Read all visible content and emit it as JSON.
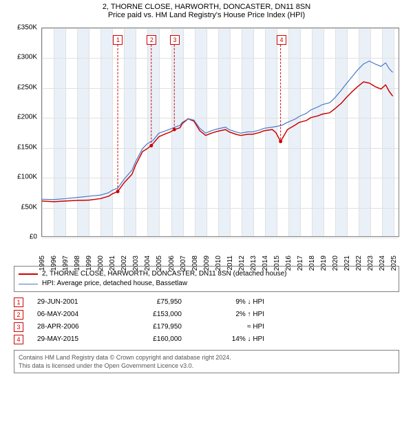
{
  "title": {
    "line1": "2, THORNE CLOSE, HARWORTH, DONCASTER, DN11 8SN",
    "line2": "Price paid vs. HM Land Registry's House Price Index (HPI)"
  },
  "chart": {
    "type": "line",
    "x_start_year": 1995,
    "x_end_year": 2025,
    "xlim": [
      1995,
      2025.5
    ],
    "ylim": [
      0,
      350000
    ],
    "ytick_step": 50000,
    "ytick_labels": [
      "£0",
      "£50K",
      "£100K",
      "£150K",
      "£200K",
      "£250K",
      "£300K",
      "£350K"
    ],
    "xtick_years": [
      1995,
      1996,
      1997,
      1998,
      1999,
      2000,
      2001,
      2002,
      2003,
      2004,
      2005,
      2006,
      2007,
      2008,
      2009,
      2010,
      2011,
      2012,
      2013,
      2014,
      2015,
      2016,
      2017,
      2018,
      2019,
      2020,
      2021,
      2022,
      2023,
      2024,
      2025
    ],
    "band_color": "#eaf0f8",
    "grid_color": "#e0e0e0",
    "border_color": "#808080",
    "background_color": "#ffffff",
    "series": [
      {
        "name": "2, THORNE CLOSE, HARWORTH, DONCASTER, DN11 8SN (detached house)",
        "color": "#cc0000",
        "line_width": 1.5,
        "points": [
          [
            1995,
            60000
          ],
          [
            1996,
            59000
          ],
          [
            1997,
            60000
          ],
          [
            1998,
            61000
          ],
          [
            1999,
            61500
          ],
          [
            2000,
            64000
          ],
          [
            2000.7,
            68000
          ],
          [
            2001.0,
            72000
          ],
          [
            2001.48,
            75950
          ],
          [
            2002,
            90000
          ],
          [
            2002.7,
            105000
          ],
          [
            2003,
            120000
          ],
          [
            2003.6,
            143000
          ],
          [
            2004.0,
            148000
          ],
          [
            2004.35,
            153000
          ],
          [
            2005,
            168000
          ],
          [
            2005.6,
            173000
          ],
          [
            2006,
            176000
          ],
          [
            2006.32,
            179950
          ],
          [
            2006.8,
            183000
          ],
          [
            2007,
            190000
          ],
          [
            2007.5,
            198000
          ],
          [
            2008,
            194000
          ],
          [
            2008.5,
            178000
          ],
          [
            2009,
            170000
          ],
          [
            2009.5,
            174000
          ],
          [
            2010,
            177000
          ],
          [
            2010.7,
            180000
          ],
          [
            2011,
            176000
          ],
          [
            2011.6,
            172000
          ],
          [
            2012,
            170000
          ],
          [
            2012.6,
            172000
          ],
          [
            2013,
            172000
          ],
          [
            2013.6,
            175000
          ],
          [
            2014,
            178000
          ],
          [
            2014.7,
            180000
          ],
          [
            2015.0,
            175000
          ],
          [
            2015.41,
            160000
          ],
          [
            2016,
            180000
          ],
          [
            2016.7,
            188000
          ],
          [
            2017,
            192000
          ],
          [
            2017.6,
            195000
          ],
          [
            2018,
            200000
          ],
          [
            2018.6,
            203000
          ],
          [
            2019,
            206000
          ],
          [
            2019.6,
            208000
          ],
          [
            2020,
            214000
          ],
          [
            2020.6,
            224000
          ],
          [
            2021,
            233000
          ],
          [
            2021.5,
            243000
          ],
          [
            2022,
            252000
          ],
          [
            2022.5,
            260000
          ],
          [
            2023,
            258000
          ],
          [
            2023.5,
            252000
          ],
          [
            2024,
            248000
          ],
          [
            2024.4,
            255000
          ],
          [
            2024.7,
            244000
          ],
          [
            2025,
            236000
          ]
        ]
      },
      {
        "name": "HPI: Average price, detached house, Bassetlaw",
        "color": "#4a77c4",
        "line_width": 1.2,
        "points": [
          [
            1995,
            63000
          ],
          [
            1996,
            62500
          ],
          [
            1997,
            64000
          ],
          [
            1998,
            66000
          ],
          [
            1999,
            68000
          ],
          [
            2000,
            70000
          ],
          [
            2000.7,
            74000
          ],
          [
            2001.0,
            78000
          ],
          [
            2001.5,
            82000
          ],
          [
            2002,
            96000
          ],
          [
            2002.7,
            112000
          ],
          [
            2003,
            126000
          ],
          [
            2003.6,
            148000
          ],
          [
            2004.0,
            156000
          ],
          [
            2004.5,
            162000
          ],
          [
            2005,
            174000
          ],
          [
            2005.6,
            178000
          ],
          [
            2006,
            181000
          ],
          [
            2006.5,
            185000
          ],
          [
            2006.8,
            187000
          ],
          [
            2007,
            192000
          ],
          [
            2007.5,
            198000
          ],
          [
            2008,
            196000
          ],
          [
            2008.5,
            182000
          ],
          [
            2009,
            174000
          ],
          [
            2009.5,
            178000
          ],
          [
            2010,
            181000
          ],
          [
            2010.7,
            184000
          ],
          [
            2011,
            180000
          ],
          [
            2011.6,
            176000
          ],
          [
            2012,
            174000
          ],
          [
            2012.6,
            176000
          ],
          [
            2013,
            176000
          ],
          [
            2013.6,
            179000
          ],
          [
            2014,
            182000
          ],
          [
            2014.7,
            184000
          ],
          [
            2015.0,
            185000
          ],
          [
            2015.5,
            187000
          ],
          [
            2016,
            192000
          ],
          [
            2016.7,
            198000
          ],
          [
            2017,
            202000
          ],
          [
            2017.6,
            207000
          ],
          [
            2018,
            213000
          ],
          [
            2018.6,
            218000
          ],
          [
            2019,
            222000
          ],
          [
            2019.6,
            225000
          ],
          [
            2020,
            232000
          ],
          [
            2020.6,
            246000
          ],
          [
            2021,
            256000
          ],
          [
            2021.5,
            268000
          ],
          [
            2022,
            280000
          ],
          [
            2022.5,
            290000
          ],
          [
            2023,
            295000
          ],
          [
            2023.5,
            290000
          ],
          [
            2024,
            286000
          ],
          [
            2024.4,
            292000
          ],
          [
            2024.7,
            282000
          ],
          [
            2025,
            276000
          ]
        ]
      }
    ],
    "sale_markers": [
      {
        "label": "1",
        "x": 2001.48,
        "box_top_offset": 10
      },
      {
        "label": "2",
        "x": 2004.35,
        "box_top_offset": 10
      },
      {
        "label": "3",
        "x": 2006.32,
        "box_top_offset": 10
      },
      {
        "label": "4",
        "x": 2015.41,
        "box_top_offset": 10
      }
    ],
    "marker_color": "#cc0000"
  },
  "legend": {
    "title": null,
    "rows": [
      {
        "color": "#cc0000",
        "width": 2,
        "text": "2, THORNE CLOSE, HARWORTH, DONCASTER, DN11 8SN (detached house)"
      },
      {
        "color": "#4a77c4",
        "width": 1,
        "text": "HPI: Average price, detached house, Bassetlaw"
      }
    ]
  },
  "events": [
    {
      "label": "1",
      "date": "29-JUN-2001",
      "price": "£75,950",
      "pct": "9% ↓ HPI"
    },
    {
      "label": "2",
      "date": "06-MAY-2004",
      "price": "£153,000",
      "pct": "2% ↑ HPI"
    },
    {
      "label": "3",
      "date": "28-APR-2006",
      "price": "£179,950",
      "pct": "≈ HPI"
    },
    {
      "label": "4",
      "date": "29-MAY-2015",
      "price": "£160,000",
      "pct": "14% ↓ HPI"
    }
  ],
  "footer": {
    "line1": "Contains HM Land Registry data © Crown copyright and database right 2024.",
    "line2": "This data is licensed under the Open Government Licence v3.0."
  },
  "fonts": {
    "title_size": 11,
    "axis_label_size": 10,
    "legend_size": 10,
    "footer_size": 9
  }
}
